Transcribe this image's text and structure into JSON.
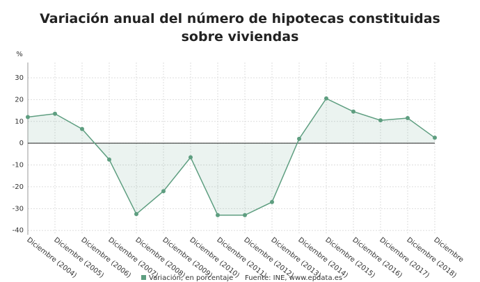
{
  "chart_data": {
    "type": "line",
    "title": "Variación anual del número de hipotecas constituidas sobre viviendas",
    "y_label": "%",
    "source": "Fuente: INE, www.epdata.es",
    "categories": [
      "Diciembre (2004)",
      "Diciembre (2005)",
      "Diciembre (2006)",
      "Diciembre (2007)",
      "Diciembre (2008)",
      "Diciembre (2009)",
      "Diciembre (2010)",
      "Diciembre (2011)",
      "Diciembre (2012)",
      "Diciembre (2013)",
      "Diciembre (2014)",
      "Diciembre (2015)",
      "Diciembre (2016)",
      "Diciembre (2017)",
      "Diciembre (2018)",
      "Diciembre"
    ],
    "series": [
      {
        "name": "Variación, en porcentaje",
        "color": "#5e9e80",
        "values": [
          12,
          13.5,
          6.5,
          -7.5,
          -32.5,
          -22,
          -6.5,
          -33,
          -33,
          -27,
          2,
          20.5,
          14.5,
          10.5,
          11.5,
          2.5
        ]
      }
    ],
    "ylim": [
      -42,
      37
    ],
    "yticks": [
      -40,
      -30,
      -20,
      -10,
      0,
      10,
      20,
      30
    ],
    "grid": true
  }
}
